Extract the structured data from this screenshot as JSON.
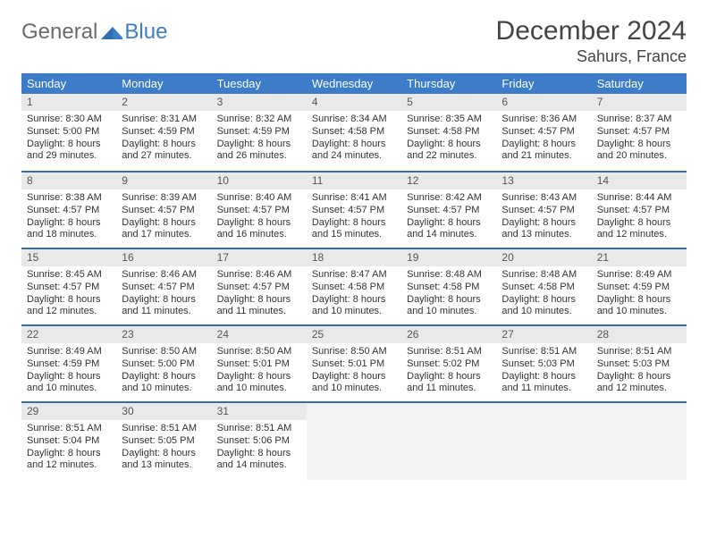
{
  "brand": {
    "first": "General",
    "second": "Blue"
  },
  "title": "December 2024",
  "location": "Sahurs, France",
  "colors": {
    "header_bg": "#3d7cc9",
    "rule": "#2f6fb0",
    "daynum_bg": "#e9e9e9",
    "text": "#333333"
  },
  "weekdays": [
    "Sunday",
    "Monday",
    "Tuesday",
    "Wednesday",
    "Thursday",
    "Friday",
    "Saturday"
  ],
  "weeks": [
    [
      {
        "n": "1",
        "sr": "8:30 AM",
        "ss": "5:00 PM",
        "dl": "8 hours and 29 minutes."
      },
      {
        "n": "2",
        "sr": "8:31 AM",
        "ss": "4:59 PM",
        "dl": "8 hours and 27 minutes."
      },
      {
        "n": "3",
        "sr": "8:32 AM",
        "ss": "4:59 PM",
        "dl": "8 hours and 26 minutes."
      },
      {
        "n": "4",
        "sr": "8:34 AM",
        "ss": "4:58 PM",
        "dl": "8 hours and 24 minutes."
      },
      {
        "n": "5",
        "sr": "8:35 AM",
        "ss": "4:58 PM",
        "dl": "8 hours and 22 minutes."
      },
      {
        "n": "6",
        "sr": "8:36 AM",
        "ss": "4:57 PM",
        "dl": "8 hours and 21 minutes."
      },
      {
        "n": "7",
        "sr": "8:37 AM",
        "ss": "4:57 PM",
        "dl": "8 hours and 20 minutes."
      }
    ],
    [
      {
        "n": "8",
        "sr": "8:38 AM",
        "ss": "4:57 PM",
        "dl": "8 hours and 18 minutes."
      },
      {
        "n": "9",
        "sr": "8:39 AM",
        "ss": "4:57 PM",
        "dl": "8 hours and 17 minutes."
      },
      {
        "n": "10",
        "sr": "8:40 AM",
        "ss": "4:57 PM",
        "dl": "8 hours and 16 minutes."
      },
      {
        "n": "11",
        "sr": "8:41 AM",
        "ss": "4:57 PM",
        "dl": "8 hours and 15 minutes."
      },
      {
        "n": "12",
        "sr": "8:42 AM",
        "ss": "4:57 PM",
        "dl": "8 hours and 14 minutes."
      },
      {
        "n": "13",
        "sr": "8:43 AM",
        "ss": "4:57 PM",
        "dl": "8 hours and 13 minutes."
      },
      {
        "n": "14",
        "sr": "8:44 AM",
        "ss": "4:57 PM",
        "dl": "8 hours and 12 minutes."
      }
    ],
    [
      {
        "n": "15",
        "sr": "8:45 AM",
        "ss": "4:57 PM",
        "dl": "8 hours and 12 minutes."
      },
      {
        "n": "16",
        "sr": "8:46 AM",
        "ss": "4:57 PM",
        "dl": "8 hours and 11 minutes."
      },
      {
        "n": "17",
        "sr": "8:46 AM",
        "ss": "4:57 PM",
        "dl": "8 hours and 11 minutes."
      },
      {
        "n": "18",
        "sr": "8:47 AM",
        "ss": "4:58 PM",
        "dl": "8 hours and 10 minutes."
      },
      {
        "n": "19",
        "sr": "8:48 AM",
        "ss": "4:58 PM",
        "dl": "8 hours and 10 minutes."
      },
      {
        "n": "20",
        "sr": "8:48 AM",
        "ss": "4:58 PM",
        "dl": "8 hours and 10 minutes."
      },
      {
        "n": "21",
        "sr": "8:49 AM",
        "ss": "4:59 PM",
        "dl": "8 hours and 10 minutes."
      }
    ],
    [
      {
        "n": "22",
        "sr": "8:49 AM",
        "ss": "4:59 PM",
        "dl": "8 hours and 10 minutes."
      },
      {
        "n": "23",
        "sr": "8:50 AM",
        "ss": "5:00 PM",
        "dl": "8 hours and 10 minutes."
      },
      {
        "n": "24",
        "sr": "8:50 AM",
        "ss": "5:01 PM",
        "dl": "8 hours and 10 minutes."
      },
      {
        "n": "25",
        "sr": "8:50 AM",
        "ss": "5:01 PM",
        "dl": "8 hours and 10 minutes."
      },
      {
        "n": "26",
        "sr": "8:51 AM",
        "ss": "5:02 PM",
        "dl": "8 hours and 11 minutes."
      },
      {
        "n": "27",
        "sr": "8:51 AM",
        "ss": "5:03 PM",
        "dl": "8 hours and 11 minutes."
      },
      {
        "n": "28",
        "sr": "8:51 AM",
        "ss": "5:03 PM",
        "dl": "8 hours and 12 minutes."
      }
    ],
    [
      {
        "n": "29",
        "sr": "8:51 AM",
        "ss": "5:04 PM",
        "dl": "8 hours and 12 minutes."
      },
      {
        "n": "30",
        "sr": "8:51 AM",
        "ss": "5:05 PM",
        "dl": "8 hours and 13 minutes."
      },
      {
        "n": "31",
        "sr": "8:51 AM",
        "ss": "5:06 PM",
        "dl": "8 hours and 14 minutes."
      },
      null,
      null,
      null,
      null
    ]
  ],
  "labels": {
    "sunrise": "Sunrise: ",
    "sunset": "Sunset: ",
    "daylight": "Daylight: "
  }
}
